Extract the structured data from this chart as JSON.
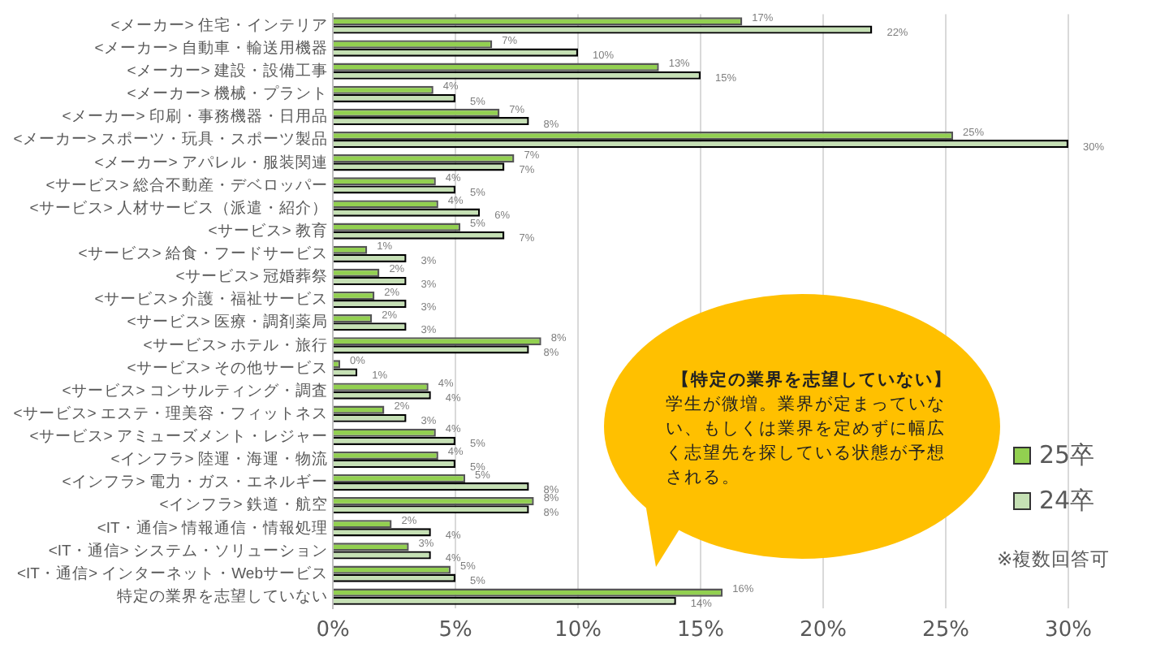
{
  "chart_data": {
    "type": "bar",
    "orientation": "horizontal",
    "categories": [
      "<メーカー> 住宅・インテリア",
      "<メーカー> 自動車・輸送用機器",
      "<メーカー> 建設・設備工事",
      "<メーカー> 機械・プラント",
      "<メーカー> 印刷・事務機器・日用品",
      "<メーカー> スポーツ・玩具・スポーツ製品",
      "<メーカー> アパレル・服装関連",
      "<サービス> 総合不動産・デベロッパー",
      "<サービス> 人材サービス（派遣・紹介）",
      "<サービス> 教育",
      "<サービス> 給食・フードサービス",
      "<サービス> 冠婚葬祭",
      "<サービス> 介護・福祉サービス",
      "<サービス> 医療・調剤薬局",
      "<サービス> ホテル・旅行",
      "<サービス> その他サービス",
      "<サービス> コンサルティング・調査",
      "<サービス> エステ・理美容・フィットネス",
      "<サービス> アミューズメント・レジャー",
      "<インフラ> 陸運・海運・物流",
      "<インフラ> 電力・ガス・エネルギー",
      "<インフラ> 鉄道・航空",
      "<IT・通信> 情報通信・情報処理",
      "<IT・通信> システム・ソリューション",
      "<IT・通信> インターネット・Webサービス",
      "特定の業界を志望していない"
    ],
    "series": [
      {
        "name": "25卒",
        "color": "#92d050",
        "values": [
          16.7,
          6.5,
          13.3,
          4.1,
          6.8,
          25.3,
          7.4,
          4.2,
          4.3,
          5.2,
          1.4,
          1.9,
          1.7,
          1.6,
          8.5,
          0.3,
          3.9,
          2.1,
          4.2,
          4.3,
          5.4,
          8.2,
          2.4,
          3.1,
          4.8,
          15.9
        ],
        "value_labels": [
          "17%",
          "7%",
          "13%",
          "4%",
          "7%",
          "25%",
          "7%",
          "4%",
          "4%",
          "5%",
          "1%",
          "2%",
          "2%",
          "2%",
          "8%",
          "0%",
          "4%",
          "2%",
          "4%",
          "4%",
          "5%",
          "8%",
          "2%",
          "3%",
          "5%",
          "16%"
        ]
      },
      {
        "name": "24卒",
        "color": "#c5e0b4",
        "values": [
          22.0,
          10.0,
          15.0,
          5.0,
          8.0,
          30.0,
          7.0,
          5.0,
          6.0,
          7.0,
          3.0,
          3.0,
          3.0,
          3.0,
          8.0,
          1.0,
          4.0,
          3.0,
          5.0,
          5.0,
          8.0,
          8.0,
          4.0,
          4.0,
          5.0,
          14.0
        ],
        "value_labels": [
          "22%",
          "10%",
          "15%",
          "5%",
          "8%",
          "30%",
          "7%",
          "5%",
          "6%",
          "7%",
          "3%",
          "3%",
          "3%",
          "3%",
          "8%",
          "1%",
          "4%",
          "3%",
          "5%",
          "5%",
          "8%",
          "8%",
          "4%",
          "4%",
          "5%",
          "14%"
        ]
      }
    ],
    "xlim": [
      0,
      30
    ],
    "xticks": [
      {
        "value": 0,
        "label": "0%"
      },
      {
        "value": 5,
        "label": "5%"
      },
      {
        "value": 10,
        "label": "10%"
      },
      {
        "value": 15,
        "label": "15%"
      },
      {
        "value": 20,
        "label": "20%"
      },
      {
        "value": 25,
        "label": "25%"
      },
      {
        "value": 30,
        "label": "30%"
      }
    ],
    "grid": "x",
    "legend": "right",
    "annotations": [
      "【特定の業界を志望していない】",
      "学生が微増。業界が定まっていない、もしくは業界を定めずに幅広く志望先を探している状態が予想される。",
      "※複数回答可"
    ]
  }
}
